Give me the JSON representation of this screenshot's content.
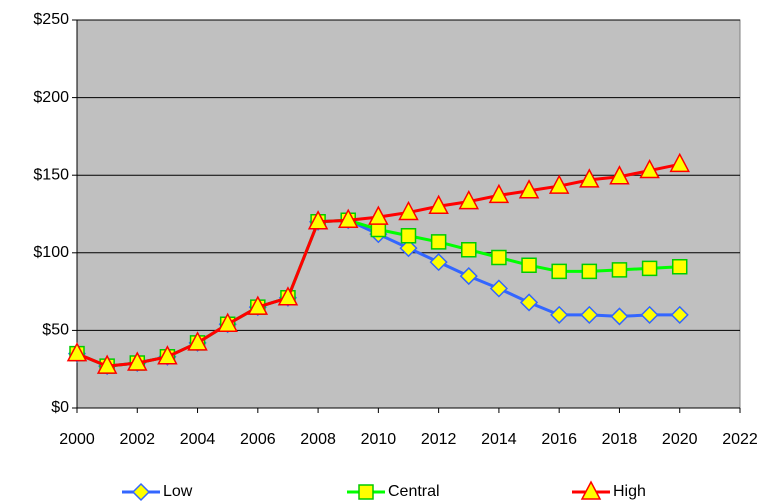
{
  "chart_data": {
    "type": "line",
    "x": [
      2000,
      2001,
      2002,
      2003,
      2004,
      2005,
      2006,
      2007,
      2008,
      2009,
      2010,
      2011,
      2012,
      2013,
      2014,
      2015,
      2016,
      2017,
      2018,
      2019,
      2020
    ],
    "series": [
      {
        "name": "Low",
        "color": "#3366ff",
        "marker": "diamond",
        "marker_color": "#ffff00",
        "values": [
          35,
          27,
          29,
          33,
          42,
          54,
          65,
          71,
          120,
          121,
          112,
          103,
          94,
          85,
          77,
          68,
          60,
          60,
          59,
          60,
          60
        ]
      },
      {
        "name": "Central",
        "color": "#00ff00",
        "marker": "square",
        "marker_color": "#ffff00",
        "values": [
          35,
          27,
          29,
          33,
          42,
          54,
          65,
          71,
          120,
          121,
          115,
          111,
          107,
          102,
          97,
          92,
          88,
          88,
          89,
          90,
          91
        ]
      },
      {
        "name": "High",
        "color": "#ff0000",
        "marker": "triangle",
        "marker_color": "#ffff00",
        "values": [
          35,
          27,
          29,
          33,
          42,
          54,
          65,
          71,
          120,
          121,
          123,
          126,
          130,
          133,
          137,
          140,
          143,
          147,
          149,
          153,
          157
        ]
      }
    ],
    "xlim": [
      2000,
      2022
    ],
    "xticks": [
      2000,
      2002,
      2004,
      2006,
      2008,
      2010,
      2012,
      2014,
      2016,
      2018,
      2020,
      2022
    ],
    "ylim": [
      0,
      250
    ],
    "yticks": [
      {
        "value": 0,
        "label": "$0"
      },
      {
        "value": 50,
        "label": "$50"
      },
      {
        "value": 100,
        "label": "$100"
      },
      {
        "value": 150,
        "label": "$150"
      },
      {
        "value": 200,
        "label": "$200"
      },
      {
        "value": 250,
        "label": "$250"
      }
    ],
    "grid": true,
    "legend": "bottom",
    "plot_background": "#c0c0c0"
  }
}
